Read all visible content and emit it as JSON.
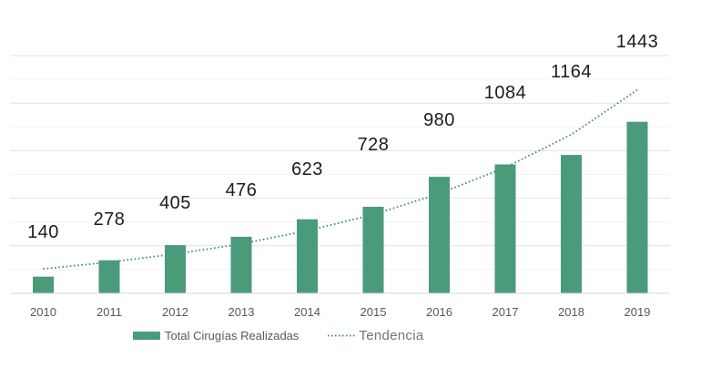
{
  "chart_data": {
    "type": "bar",
    "title": "",
    "xlabel": "",
    "ylabel": "",
    "categories": [
      "2010",
      "2011",
      "2012",
      "2013",
      "2014",
      "2015",
      "2016",
      "2017",
      "2018",
      "2019"
    ],
    "series": [
      {
        "name": "Total Cirugías Realizadas",
        "type": "bar",
        "values": [
          140,
          278,
          405,
          476,
          623,
          728,
          980,
          1084,
          1164,
          1443
        ]
      },
      {
        "name": "Tendencia",
        "type": "dotted-line",
        "values": [
          205,
          262,
          331,
          415,
          527,
          662,
          838,
          1058,
          1335,
          1710
        ]
      }
    ],
    "data_labels": [
      "140",
      "278",
      "405",
      "476",
      "623",
      "728",
      "980",
      "1084",
      "1164",
      "1443"
    ],
    "ylim": [
      0,
      2000
    ],
    "grid": {
      "visible": true,
      "minor_step": 200,
      "major_step": 400,
      "y_axis_labels_visible": false
    },
    "legend_position": "bottom"
  },
  "legend": {
    "bar_label": "Total Cirugías Realizadas",
    "trend_label": "Tendencia"
  },
  "colors": {
    "bar": "#4a9b7b",
    "trend": "#3e8e6d",
    "data_label": "#1c1c1c",
    "tick_label": "#595959",
    "legend_text": "#595959",
    "legend_trend_text": "#757575",
    "grid_major": "#e2e2e2",
    "grid_minor": "#f3f3f3",
    "axis_line": "#d8d8d8",
    "background": "#ffffff"
  }
}
